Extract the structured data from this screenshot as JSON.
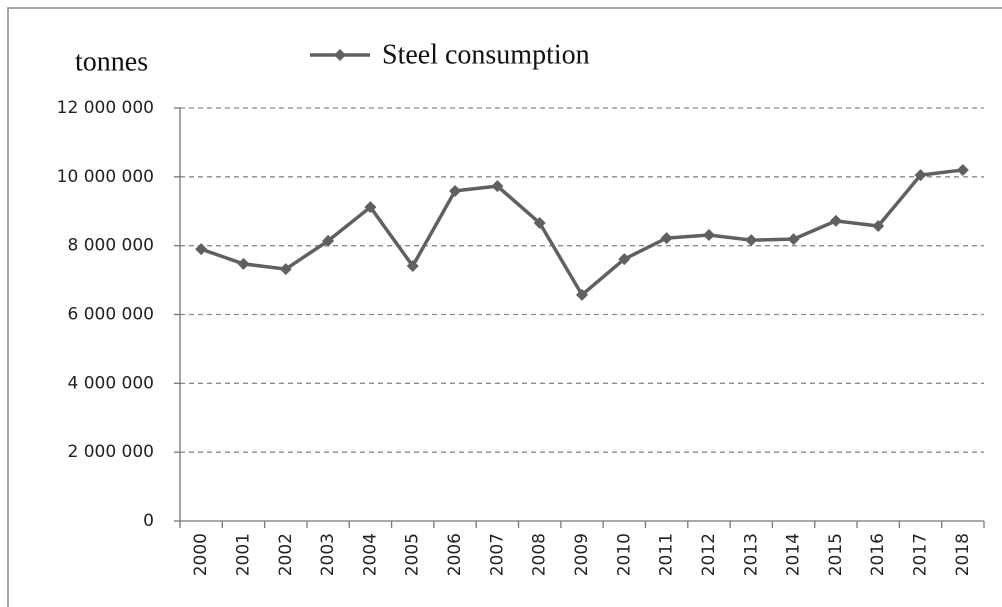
{
  "chart_data": {
    "type": "line",
    "y_axis_label": "tonnes",
    "categories": [
      "2000",
      "2001",
      "2002",
      "2003",
      "2004",
      "2005",
      "2006",
      "2007",
      "2008",
      "2009",
      "2010",
      "2011",
      "2012",
      "2013",
      "2014",
      "2015",
      "2016",
      "2017",
      "2018"
    ],
    "series": [
      {
        "name": "Steel consumption",
        "color": "#606060",
        "values": [
          7900000,
          7470000,
          7320000,
          8140000,
          9120000,
          7410000,
          9590000,
          9730000,
          8660000,
          6570000,
          7610000,
          8220000,
          8310000,
          8160000,
          8190000,
          8720000,
          8570000,
          10050000,
          10200000
        ]
      }
    ],
    "ylim": [
      0,
      12000000
    ],
    "yticks": [
      0,
      {
        "value": 2000000,
        "label": "2 000 000"
      },
      {
        "value": 4000000,
        "label": "4 000 000"
      },
      {
        "value": 6000000,
        "label": "6 000 000"
      },
      {
        "value": 8000000,
        "label": "8 000 000"
      },
      {
        "value": 10000000,
        "label": "10 000 000"
      },
      {
        "value": 12000000,
        "label": "12 000 000"
      }
    ],
    "grid": true,
    "legend": "top"
  }
}
